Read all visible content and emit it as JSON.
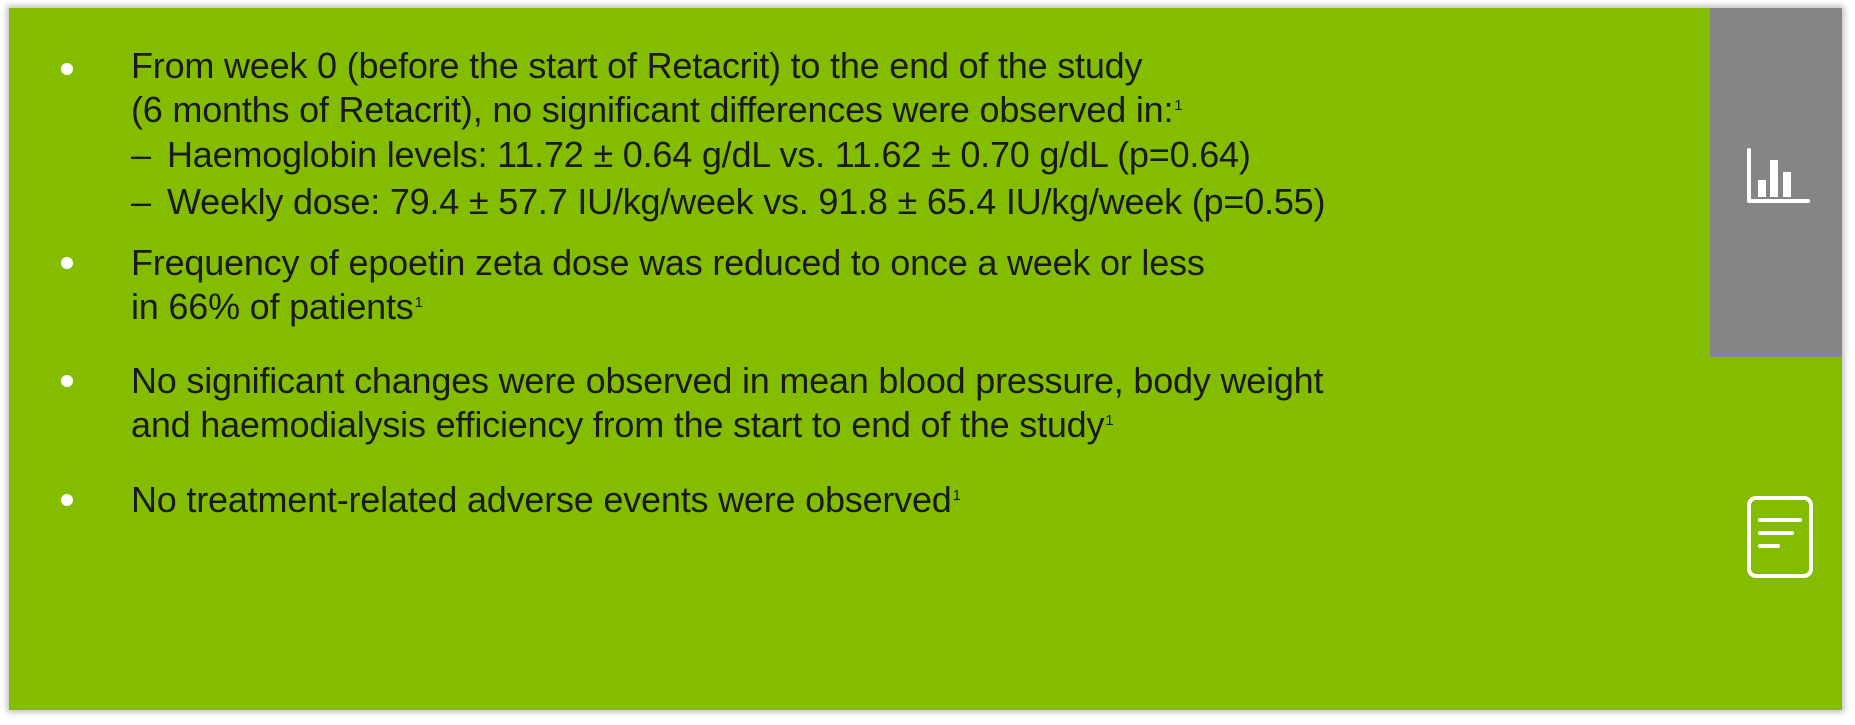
{
  "bullets": [
    {
      "lines": [
        "From week 0 (before the start of Retacrit) to the end of the study",
        "(6 months of Retacrit), no significant differences were observed in:"
      ],
      "ref": "1",
      "sub_items": [
        {
          "dash": "–",
          "text": "Haemoglobin levels: 11.72 ± 0.64 g/dL vs. 11.62 ± 0.70 g/dL (p=0.64)"
        },
        {
          "dash": "–",
          "text": "Weekly dose: 79.4 ± 57.7 IU/kg/week vs. 91.8 ± 65.4 IU/kg/week (p=0.55)"
        }
      ]
    },
    {
      "lines": [
        "Frequency of epoetin zeta dose was reduced to once a week or less",
        "in 66% of patients"
      ],
      "ref": "1"
    },
    {
      "lines": [
        "No significant changes were observed in mean blood pressure, body weight",
        "and haemodialysis efficiency from the start to end of the study"
      ],
      "ref": "1"
    },
    {
      "lines": [
        "No treatment-related adverse events were observed"
      ],
      "ref": "1"
    }
  ],
  "sidebar": {
    "chart_icon": "bar-chart-icon",
    "notes_icon": "document-icon"
  },
  "colors": {
    "panel_bg": "#84bd00",
    "sidebar_tab_bg": "#848587",
    "bullet": "#ffffff",
    "text": "#1a1a1a"
  }
}
